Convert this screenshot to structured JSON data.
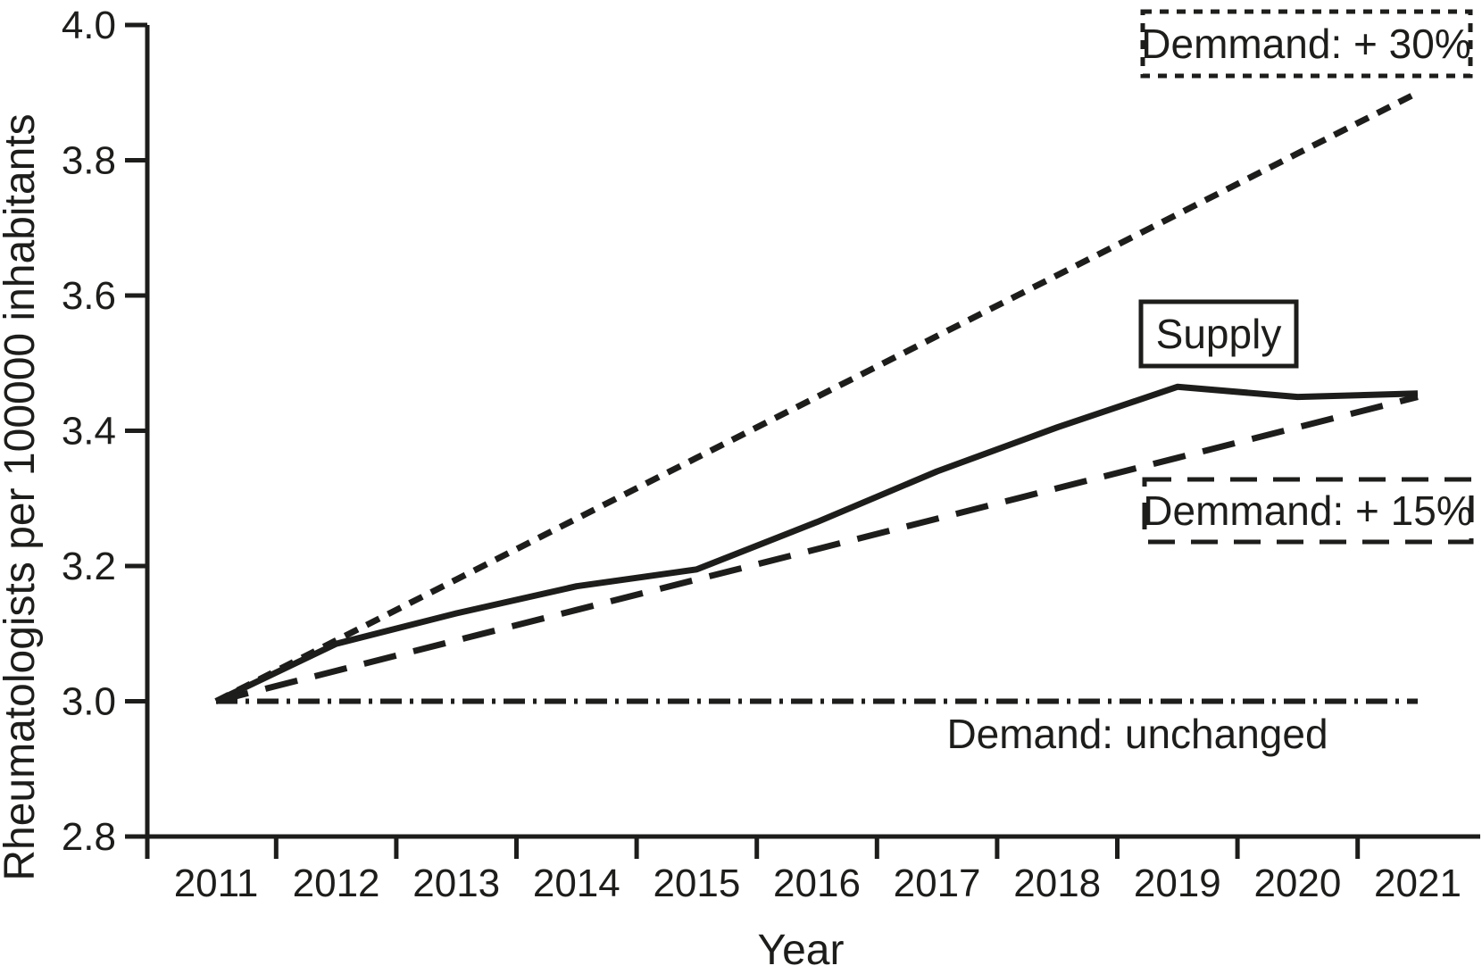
{
  "figure": {
    "ink_color": "#1d1d1b",
    "background_color": "#ffffff"
  },
  "chart_data": {
    "type": "line",
    "title": "",
    "xlabel": "Year",
    "ylabel": "Rheumatologists per 100000 inhabitants",
    "x": [
      2011,
      2012,
      2013,
      2014,
      2015,
      2016,
      2017,
      2018,
      2019,
      2020,
      2021
    ],
    "xlim": [
      2011,
      2021
    ],
    "ylim": [
      2.8,
      4.0
    ],
    "yticks": [
      2.8,
      3.0,
      3.2,
      3.4,
      3.6,
      3.8,
      4.0
    ],
    "grid": false,
    "legend_position": "inline-annotations",
    "series": [
      {
        "key": "demand-plus-30",
        "name": "Demmand: + 30%",
        "line_style": "dotted",
        "values": [
          3.0,
          3.09,
          3.18,
          3.27,
          3.36,
          3.45,
          3.54,
          3.63,
          3.72,
          3.81,
          3.9
        ]
      },
      {
        "key": "supply",
        "name": "Supply",
        "line_style": "solid",
        "values": [
          3.0,
          3.085,
          3.13,
          3.17,
          3.195,
          3.265,
          3.34,
          3.405,
          3.465,
          3.45,
          3.455
        ]
      },
      {
        "key": "demand-plus-15",
        "name": "Demmand: + 15%",
        "line_style": "dashed",
        "values": [
          3.0,
          3.045,
          3.09,
          3.135,
          3.18,
          3.225,
          3.27,
          3.315,
          3.36,
          3.405,
          3.45
        ]
      },
      {
        "key": "demand-unchanged",
        "name": "Demand: unchanged",
        "line_style": "dashdot",
        "values": [
          3.0,
          3.0,
          3.0,
          3.0,
          3.0,
          3.0,
          3.0,
          3.0,
          3.0,
          3.0,
          3.0
        ]
      }
    ],
    "annotations": [
      {
        "text": "Demmand: + 30%",
        "box": "dotted"
      },
      {
        "text": "Supply",
        "box": "solid"
      },
      {
        "text": "Demmand: + 15%",
        "box": "dashed"
      },
      {
        "text": "Demand: unchanged",
        "box": "none"
      }
    ]
  }
}
